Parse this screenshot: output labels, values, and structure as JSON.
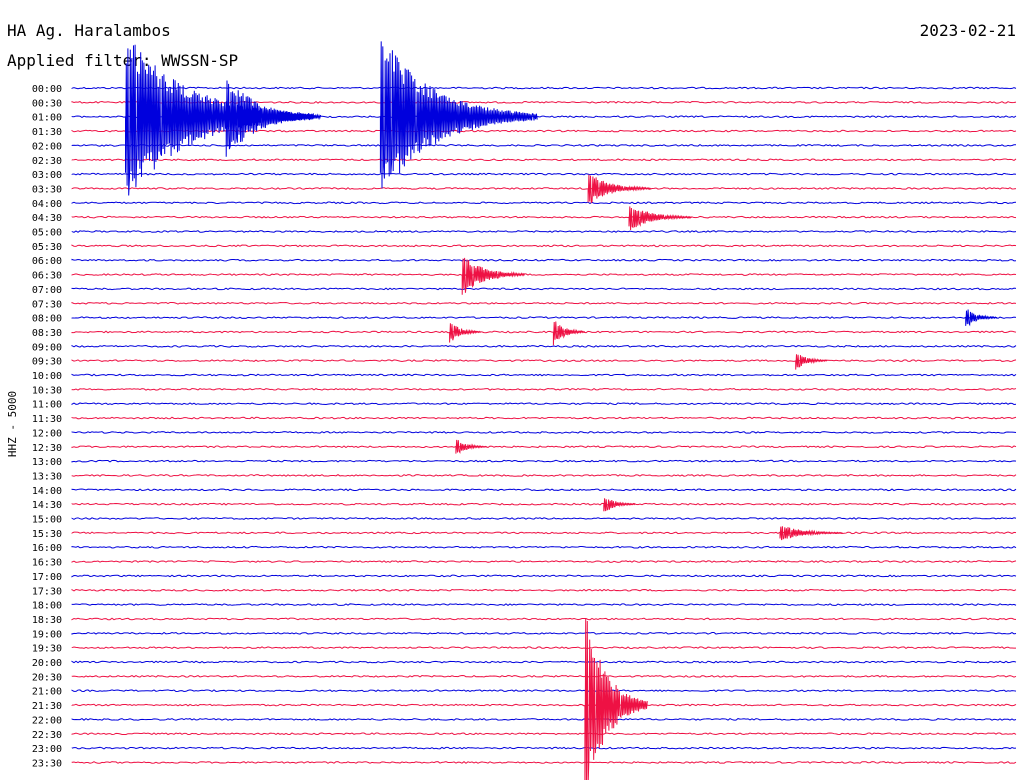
{
  "header": {
    "station": "HA Ag. Haralambos",
    "date": "2023-02-21",
    "filter": "Applied filter: WWSSN-SP"
  },
  "axis": {
    "channel_label": "HHZ - 5000"
  },
  "colors": {
    "blue": "#0000dd",
    "red": "#ee1144"
  },
  "chart_data": {
    "type": "line",
    "title": "HA Ag. Haralambos",
    "subtitle": "Applied filter: WWSSN-SP",
    "date": "2023-02-21",
    "ylabel": "HHZ - 5000",
    "grid": false,
    "traces": [
      {
        "label": "00:00",
        "color": "blue"
      },
      {
        "label": "00:30",
        "color": "red"
      },
      {
        "label": "01:00",
        "color": "blue"
      },
      {
        "label": "01:30",
        "color": "red"
      },
      {
        "label": "02:00",
        "color": "blue"
      },
      {
        "label": "02:30",
        "color": "red"
      },
      {
        "label": "03:00",
        "color": "blue"
      },
      {
        "label": "03:30",
        "color": "red"
      },
      {
        "label": "04:00",
        "color": "blue"
      },
      {
        "label": "04:30",
        "color": "red"
      },
      {
        "label": "05:00",
        "color": "blue"
      },
      {
        "label": "05:30",
        "color": "red"
      },
      {
        "label": "06:00",
        "color": "blue"
      },
      {
        "label": "06:30",
        "color": "red"
      },
      {
        "label": "07:00",
        "color": "blue"
      },
      {
        "label": "07:30",
        "color": "red"
      },
      {
        "label": "08:00",
        "color": "blue"
      },
      {
        "label": "08:30",
        "color": "red"
      },
      {
        "label": "09:00",
        "color": "blue"
      },
      {
        "label": "09:30",
        "color": "red"
      },
      {
        "label": "10:00",
        "color": "blue"
      },
      {
        "label": "10:30",
        "color": "red"
      },
      {
        "label": "11:00",
        "color": "blue"
      },
      {
        "label": "11:30",
        "color": "red"
      },
      {
        "label": "12:00",
        "color": "blue"
      },
      {
        "label": "12:30",
        "color": "red"
      },
      {
        "label": "13:00",
        "color": "blue"
      },
      {
        "label": "13:30",
        "color": "red"
      },
      {
        "label": "14:00",
        "color": "blue"
      },
      {
        "label": "14:30",
        "color": "red"
      },
      {
        "label": "15:00",
        "color": "blue"
      },
      {
        "label": "15:30",
        "color": "red"
      },
      {
        "label": "16:00",
        "color": "blue"
      },
      {
        "label": "16:30",
        "color": "red"
      },
      {
        "label": "17:00",
        "color": "blue"
      },
      {
        "label": "17:30",
        "color": "red"
      },
      {
        "label": "18:00",
        "color": "blue"
      },
      {
        "label": "18:30",
        "color": "red"
      },
      {
        "label": "19:00",
        "color": "blue"
      },
      {
        "label": "19:30",
        "color": "red"
      },
      {
        "label": "20:00",
        "color": "blue"
      },
      {
        "label": "20:30",
        "color": "red"
      },
      {
        "label": "21:00",
        "color": "blue"
      },
      {
        "label": "21:30",
        "color": "red"
      },
      {
        "label": "22:00",
        "color": "blue"
      },
      {
        "label": "22:30",
        "color": "red"
      },
      {
        "label": "23:00",
        "color": "blue"
      },
      {
        "label": "23:30",
        "color": "red"
      }
    ],
    "events": [
      {
        "trace": 2,
        "minute": 1.7,
        "amplitude": 6,
        "duration": 6
      },
      {
        "trace": 2,
        "minute": 4.9,
        "amplitude": 3,
        "duration": 3
      },
      {
        "trace": 2,
        "minute": 9.8,
        "amplitude": 6,
        "duration": 5
      },
      {
        "trace": 7,
        "minute": 16.4,
        "amplitude": 1.2,
        "duration": 2
      },
      {
        "trace": 9,
        "minute": 17.7,
        "amplitude": 1,
        "duration": 2
      },
      {
        "trace": 13,
        "minute": 12.4,
        "amplitude": 1.5,
        "duration": 2
      },
      {
        "trace": 16,
        "minute": 28.4,
        "amplitude": 0.8,
        "duration": 1
      },
      {
        "trace": 17,
        "minute": 12.0,
        "amplitude": 0.8,
        "duration": 1
      },
      {
        "trace": 17,
        "minute": 15.3,
        "amplitude": 1,
        "duration": 1
      },
      {
        "trace": 19,
        "minute": 23.0,
        "amplitude": 0.7,
        "duration": 1
      },
      {
        "trace": 25,
        "minute": 12.2,
        "amplitude": 0.6,
        "duration": 1
      },
      {
        "trace": 29,
        "minute": 16.9,
        "amplitude": 0.7,
        "duration": 1
      },
      {
        "trace": 31,
        "minute": 22.5,
        "amplitude": 0.6,
        "duration": 2
      },
      {
        "trace": 43,
        "minute": 16.3,
        "amplitude": 7,
        "duration": 2
      }
    ]
  }
}
